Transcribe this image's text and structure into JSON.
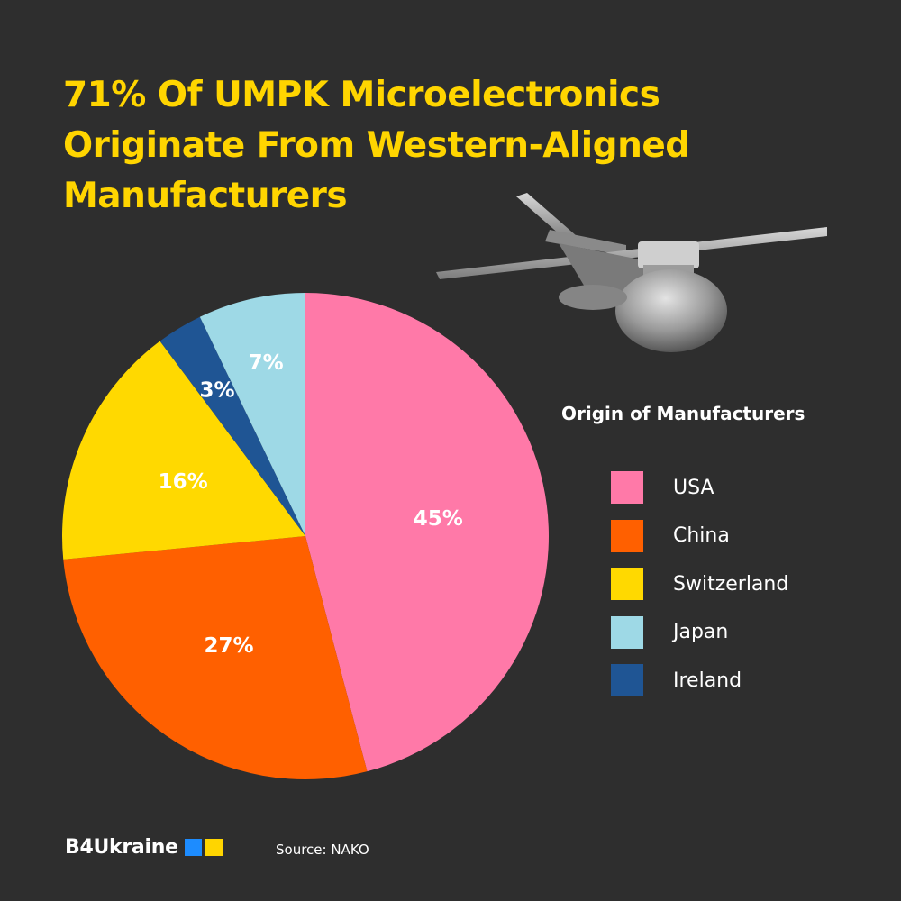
{
  "title": {
    "line1": "71% Of UMPK Microelectronics",
    "line2": "Originate From Western-Aligned",
    "line3": "Manufacturers"
  },
  "chart_data": {
    "type": "pie",
    "title": "71% Of UMPK Microelectronics Originate From Western-Aligned Manufacturers",
    "legend_title": "Origin of Manufacturers",
    "start": "12 o'clock, clockwise",
    "slices": [
      {
        "name": "USA",
        "value": 45,
        "label": "45%",
        "color": "#ff79a8"
      },
      {
        "name": "China",
        "value": 27,
        "label": "27%",
        "color": "#ff6000"
      },
      {
        "name": "Switzerland",
        "value": 16,
        "label": "16%",
        "color": "#ffd900"
      },
      {
        "name": "Ireland",
        "value": 3,
        "label": "3%",
        "color": "#1f5594"
      },
      {
        "name": "Japan",
        "value": 7,
        "label": "7%",
        "color": "#9ed9e6"
      }
    ]
  },
  "legend": {
    "title": "Origin of Manufacturers",
    "items": [
      {
        "label": "USA",
        "color": "#ff79a8"
      },
      {
        "label": "China",
        "color": "#ff6000"
      },
      {
        "label": "Switzerland",
        "color": "#ffd900"
      },
      {
        "label": "Japan",
        "color": "#9ed9e6"
      },
      {
        "label": "Ireland",
        "color": "#1f5594"
      }
    ]
  },
  "footer": {
    "brand": "B4Ukraine",
    "flag_colors": [
      "#1d8cff",
      "#ffd500"
    ],
    "source": "Source: NAKO"
  },
  "colors": {
    "background": "#2e2e2e",
    "title": "#ffd500",
    "text": "#ffffff"
  }
}
